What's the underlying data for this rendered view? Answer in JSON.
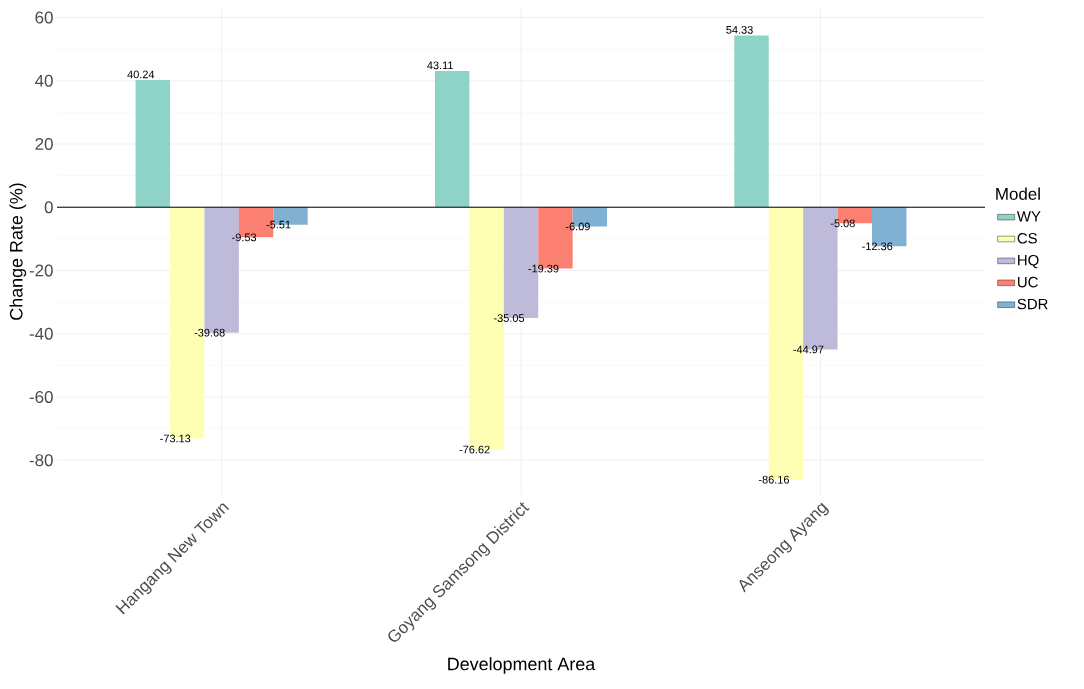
{
  "chart_data": {
    "type": "bar",
    "xlabel": "Development Area",
    "ylabel": "Change Rate (%)",
    "legend_title": "Model",
    "categories": [
      "Hangang New Town",
      "Goyang Samsong District",
      "Anseong Ayang"
    ],
    "series": [
      {
        "name": "WY",
        "color": "#8dd3c7",
        "values": [
          40.24,
          43.11,
          54.33
        ]
      },
      {
        "name": "CS",
        "color": "#ffffb3",
        "values": [
          -73.13,
          -76.62,
          -86.16
        ]
      },
      {
        "name": "HQ",
        "color": "#bebada",
        "values": [
          -39.68,
          -35.05,
          -44.97
        ]
      },
      {
        "name": "UC",
        "color": "#fb8072",
        "values": [
          -9.53,
          -19.39,
          -5.08
        ]
      },
      {
        "name": "SDR",
        "color": "#80b1d3",
        "values": [
          -5.51,
          -6.09,
          -12.36
        ]
      }
    ],
    "ylim": [
      -91,
      63
    ],
    "yticks": [
      -80,
      -60,
      -40,
      -20,
      0,
      20,
      40,
      60
    ],
    "ref_lines": [
      {
        "axis": "y",
        "value": 0,
        "color": "#000000"
      }
    ],
    "grid": true,
    "legend": "right",
    "data_labels": true
  }
}
